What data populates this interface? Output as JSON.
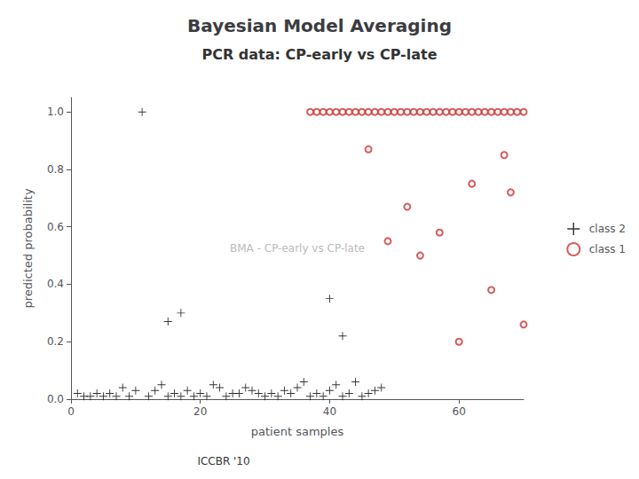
{
  "chart_data": {
    "type": "scatter",
    "title": "Bayesian Model Averaging",
    "subtitle": "PCR data: CP-early vs CP-late",
    "annotations": [
      "ICCBR '10",
      "BMA - CP-early vs CP-late"
    ],
    "x_label": "patient samples",
    "y_label": "predicted probability",
    "xlim": [
      0,
      70
    ],
    "ylim": [
      0,
      1.05
    ],
    "xticks": [
      0,
      20,
      40,
      60
    ],
    "yticks": [
      {
        "value": 0.0,
        "label": "0.0"
      },
      0.2,
      0.4,
      0.6,
      0.8,
      {
        "value": 1.0,
        "label": "1.0"
      }
    ],
    "grid": false,
    "legend": "right",
    "series": [
      {
        "name": "class 2",
        "color": "#000000",
        "marker": "plus",
        "x": [
          1,
          2,
          3,
          4,
          5,
          6,
          7,
          8,
          9,
          10,
          12,
          13,
          14,
          15,
          16,
          17,
          18,
          19,
          20,
          21,
          22,
          23,
          24,
          25,
          26,
          27,
          28,
          29,
          30,
          31,
          32,
          33,
          34,
          35,
          36,
          37,
          38,
          39,
          40,
          41,
          42,
          43,
          44,
          45,
          46,
          47,
          48,
          11,
          42,
          40,
          15,
          17
        ],
        "values": [
          0.02,
          0.01,
          0.01,
          0.02,
          0.01,
          0.02,
          0.01,
          0.04,
          0.01,
          0.03,
          0.01,
          0.03,
          0.05,
          0.01,
          0.02,
          0.01,
          0.03,
          0.01,
          0.02,
          0.01,
          0.05,
          0.04,
          0.01,
          0.02,
          0.02,
          0.04,
          0.03,
          0.02,
          0.01,
          0.02,
          0.01,
          0.03,
          0.02,
          0.04,
          0.06,
          0.01,
          0.02,
          0.01,
          0.03,
          0.05,
          0.01,
          0.02,
          0.06,
          0.01,
          0.02,
          0.03,
          0.04,
          1.0,
          0.22,
          0.35,
          0.27,
          0.3
        ]
      },
      {
        "name": "class 1",
        "color": "#cc3333",
        "marker": "circle",
        "x": [
          37,
          38,
          39,
          40,
          41,
          42,
          43,
          44,
          45,
          46,
          47,
          48,
          49,
          50,
          51,
          52,
          53,
          54,
          55,
          56,
          57,
          58,
          59,
          60,
          61,
          62,
          63,
          64,
          65,
          66,
          67,
          68,
          69,
          70,
          46,
          49,
          52,
          54,
          57,
          60,
          62,
          65,
          67,
          68,
          70
        ],
        "values": [
          1.0,
          1.0,
          1.0,
          1.0,
          1.0,
          1.0,
          1.0,
          1.0,
          1.0,
          1.0,
          1.0,
          1.0,
          1.0,
          1.0,
          1.0,
          1.0,
          1.0,
          1.0,
          1.0,
          1.0,
          1.0,
          1.0,
          1.0,
          1.0,
          1.0,
          1.0,
          1.0,
          1.0,
          1.0,
          1.0,
          1.0,
          1.0,
          1.0,
          1.0,
          0.87,
          0.55,
          0.67,
          0.5,
          0.58,
          0.2,
          0.75,
          0.38,
          0.85,
          0.72,
          0.26
        ]
      }
    ]
  }
}
